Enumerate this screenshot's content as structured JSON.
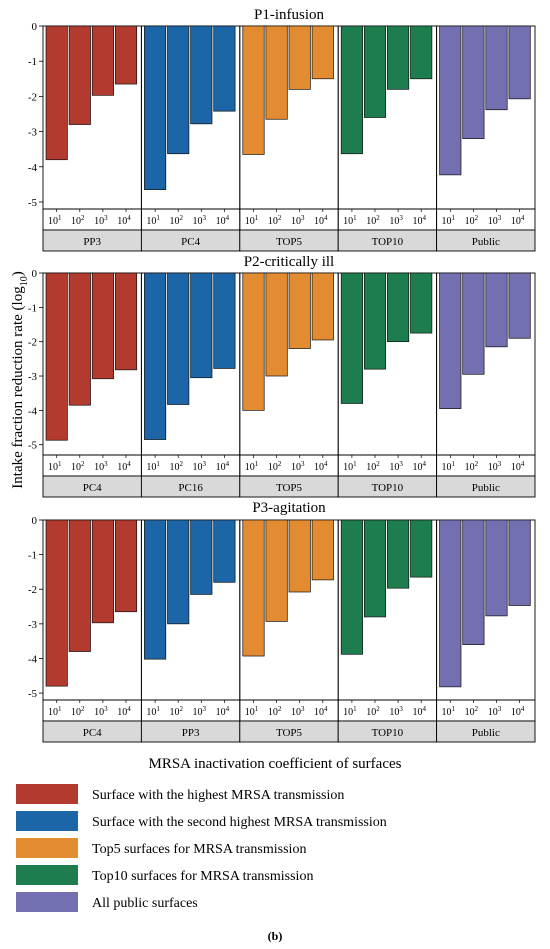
{
  "figure": {
    "ylabel": "Intake fraction reduction rate (log",
    "ylabel_sub": "10",
    "ylabel_close": ")",
    "xlabel": "MRSA inactivation coefficient of surfaces",
    "caption": "(b)"
  },
  "colors": {
    "series": [
      "#B23A2E",
      "#1C66A8",
      "#E38B30",
      "#1E7D4E",
      "#7270B0"
    ],
    "strip": "#D9D9D9"
  },
  "chart_data": [
    {
      "type": "bar",
      "title": "P1-infusion",
      "ylim": [
        -5.2,
        0
      ],
      "yticks": [
        "0",
        "-1",
        "-2",
        "-3",
        "-4",
        "-5"
      ],
      "x_ticks": [
        "10",
        "10",
        "10",
        "10"
      ],
      "x_tick_exponents": [
        "1",
        "2",
        "3",
        "4"
      ],
      "groups": [
        {
          "label": "PP3",
          "values": [
            -3.8,
            -2.8,
            -1.97,
            -1.65
          ]
        },
        {
          "label": "PC4",
          "values": [
            -4.65,
            -3.63,
            -2.78,
            -2.42
          ]
        },
        {
          "label": "TOP5",
          "values": [
            -3.65,
            -2.65,
            -1.8,
            -1.5
          ]
        },
        {
          "label": "TOP10",
          "values": [
            -3.63,
            -2.6,
            -1.8,
            -1.5
          ]
        },
        {
          "label": "Public",
          "values": [
            -4.23,
            -3.2,
            -2.38,
            -2.07
          ]
        }
      ]
    },
    {
      "type": "bar",
      "title": "P2-critically ill",
      "ylim": [
        -5.3,
        0
      ],
      "yticks": [
        "0",
        "-1",
        "-2",
        "-3",
        "-4",
        "-5"
      ],
      "x_ticks": [
        "10",
        "10",
        "10",
        "10"
      ],
      "x_tick_exponents": [
        "1",
        "2",
        "3",
        "4"
      ],
      "groups": [
        {
          "label": "PC4",
          "values": [
            -4.87,
            -3.85,
            -3.08,
            -2.82
          ]
        },
        {
          "label": "PC16",
          "values": [
            -4.85,
            -3.83,
            -3.05,
            -2.78
          ]
        },
        {
          "label": "TOP5",
          "values": [
            -4.0,
            -3.0,
            -2.2,
            -1.95
          ]
        },
        {
          "label": "TOP10",
          "values": [
            -3.8,
            -2.8,
            -2.0,
            -1.75
          ]
        },
        {
          "label": "Public",
          "values": [
            -3.95,
            -2.95,
            -2.15,
            -1.9
          ]
        }
      ]
    },
    {
      "type": "bar",
      "title": "P3-agitation",
      "ylim": [
        -5.2,
        0
      ],
      "yticks": [
        "0",
        "-1",
        "-2",
        "-3",
        "-4",
        "-5"
      ],
      "x_ticks": [
        "10",
        "10",
        "10",
        "10"
      ],
      "x_tick_exponents": [
        "1",
        "2",
        "3",
        "4"
      ],
      "groups": [
        {
          "label": "PC4",
          "values": [
            -4.8,
            -3.8,
            -2.97,
            -2.65
          ]
        },
        {
          "label": "PP3",
          "values": [
            -4.02,
            -3.0,
            -2.15,
            -1.8
          ]
        },
        {
          "label": "TOP5",
          "values": [
            -3.93,
            -2.93,
            -2.08,
            -1.73
          ]
        },
        {
          "label": "TOP10",
          "values": [
            -3.88,
            -2.8,
            -1.97,
            -1.65
          ]
        },
        {
          "label": "Public",
          "values": [
            -4.82,
            -3.6,
            -2.77,
            -2.47
          ]
        }
      ]
    }
  ],
  "legend": [
    {
      "label": "Surface with the highest MRSA transmission",
      "color": "#B23A2E"
    },
    {
      "label": "Surface with the second highest MRSA transmission",
      "color": "#1C66A8"
    },
    {
      "label": "Top5 surfaces for MRSA transmission",
      "color": "#E38B30"
    },
    {
      "label": "Top10 surfaces for MRSA transmission",
      "color": "#1E7D4E"
    },
    {
      "label": "All public surfaces",
      "color": "#7270B0"
    }
  ]
}
